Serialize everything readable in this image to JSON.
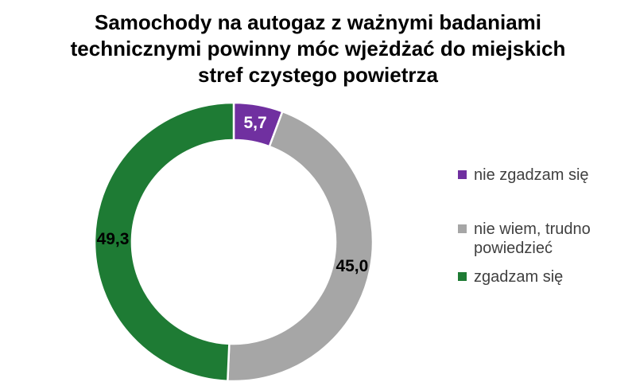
{
  "title": "Samochody na autogaz z ważnymi badaniami technicznymi powinny móc wjeżdżać do miejskich stref czystego powietrza",
  "chart_data": {
    "type": "pie",
    "subtype": "donut",
    "title": "Samochody na autogaz z ważnymi badaniami technicznymi powinny móc wjeżdżać do miejskich stref czystego powietrza",
    "unit": "%",
    "start_angle_deg": 0,
    "direction": "clockwise",
    "hole_ratio": 0.73,
    "grid": false,
    "legend_position": "right",
    "segments": [
      {
        "label": "nie zgadzam się",
        "value": 5.7,
        "value_label": "5,7",
        "color": "#7030A0",
        "value_label_color": "#FFFFFF"
      },
      {
        "label": "nie wiem, trudno powiedzieć",
        "value": 45.0,
        "value_label": "45,0",
        "color": "#A6A6A6",
        "value_label_color": "#000000"
      },
      {
        "label": "zgadzam się",
        "value": 49.3,
        "value_label": "49,3",
        "color": "#1E7B34",
        "value_label_color": "#000000"
      }
    ],
    "legend_labels_display": [
      "nie zgadzam się",
      "nie wiem, trudno\npowiedzieć",
      "zgadzam się"
    ]
  }
}
